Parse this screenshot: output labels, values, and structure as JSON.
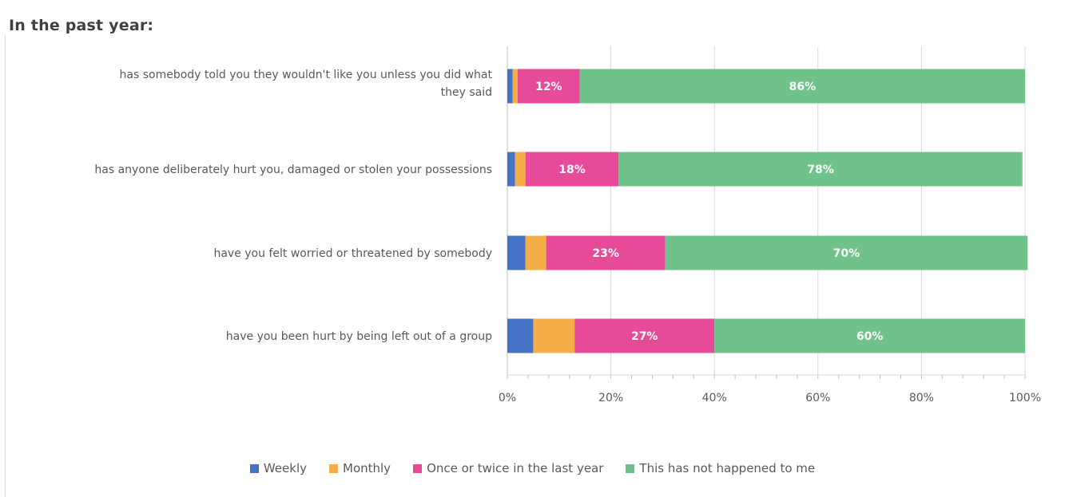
{
  "chart_data": {
    "type": "bar",
    "orientation": "horizontal",
    "stacked": "percent",
    "title": "In the past year:",
    "categories": [
      "has somebody told you they wouldn't like you unless you did what they said",
      "has anyone deliberately hurt you, damaged or stolen your possessions",
      "have you felt worried or threatened by somebody",
      "have you been hurt by being left out of a group"
    ],
    "category_label_lines": [
      [
        "has somebody told you they wouldn't like you unless you did what",
        "they said"
      ],
      [
        "has anyone deliberately hurt you, damaged or stolen your possessions"
      ],
      [
        "have you felt worried or threatened by somebody"
      ],
      [
        "have you been hurt by being left out of a group"
      ]
    ],
    "series": [
      {
        "name": "Weekly",
        "color": "#4472c4",
        "values": [
          1,
          1.5,
          3.5,
          5
        ]
      },
      {
        "name": "Monthly",
        "color": "#f4ad47",
        "values": [
          1,
          2,
          4,
          8
        ]
      },
      {
        "name": "Once or twice in the last year",
        "color": "#e84a9a",
        "values": [
          12,
          18,
          23,
          27
        ]
      },
      {
        "name": "This has not happened to me",
        "color": "#6fc28a",
        "values": [
          86,
          78,
          70,
          60
        ]
      }
    ],
    "data_labels": [
      [
        "",
        "",
        "12%",
        "86%"
      ],
      [
        "",
        "",
        "18%",
        "78%"
      ],
      [
        "",
        "",
        "23%",
        "70%"
      ],
      [
        "",
        "",
        "27%",
        "60%"
      ]
    ],
    "xlim": [
      0,
      100
    ],
    "xticks": [
      "0%",
      "20%",
      "40%",
      "60%",
      "80%",
      "100%"
    ],
    "grid": true,
    "legend_position": "bottom"
  }
}
